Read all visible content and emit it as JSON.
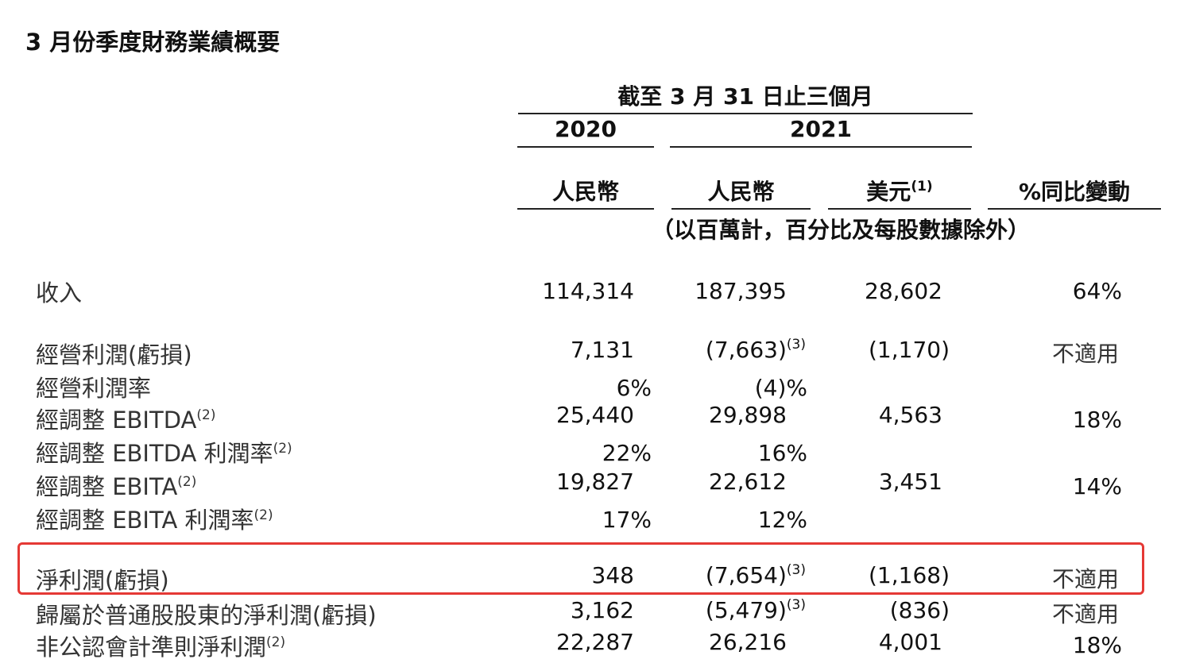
{
  "title": "3 月份季度財務業績概要",
  "header": {
    "period": "截至 3 月 31 日止三個月",
    "year_2020": "2020",
    "year_2021": "2021",
    "col_rmb_2020": "人民幣",
    "col_rmb_2021": "人民幣",
    "col_usd": "美元",
    "col_usd_note": "(1)",
    "col_yoy": "%同比變動",
    "unit_note": "（以百萬計，百分比及每股數據除外）"
  },
  "rows": [
    {
      "label": "收入",
      "label_note": "",
      "v2020": "114,314",
      "v2021": "187,395",
      "v2021_note": "",
      "usd": "28,602",
      "yoy": "64%"
    },
    {
      "label": "經營利潤(虧損)",
      "label_note": "",
      "v2020": "7,131",
      "v2021": "(7,663)",
      "v2021_note": "(3)",
      "usd": "(1,170)",
      "yoy": "不適用"
    },
    {
      "label": "經營利潤率",
      "label_note": "",
      "v2020": "6%",
      "v2021": "(4)%",
      "v2021_note": "",
      "usd": "",
      "yoy": ""
    },
    {
      "label": "經調整 EBITDA",
      "label_note": "(2)",
      "v2020": "25,440",
      "v2021": "29,898",
      "v2021_note": "",
      "usd": "4,563",
      "yoy": "18%"
    },
    {
      "label": "經調整 EBITDA 利潤率",
      "label_note": "(2)",
      "v2020": "22%",
      "v2021": "16%",
      "v2021_note": "",
      "usd": "",
      "yoy": ""
    },
    {
      "label": "經調整 EBITA",
      "label_note": "(2)",
      "v2020": "19,827",
      "v2021": "22,612",
      "v2021_note": "",
      "usd": "3,451",
      "yoy": "14%"
    },
    {
      "label": "經調整 EBITA 利潤率",
      "label_note": "(2)",
      "v2020": "17%",
      "v2021": "12%",
      "v2021_note": "",
      "usd": "",
      "yoy": ""
    },
    {
      "label": "淨利潤(虧損)",
      "label_note": "",
      "v2020": "348",
      "v2021": "(7,654)",
      "v2021_note": "(3)",
      "usd": "(1,168)",
      "yoy": "不適用"
    },
    {
      "label": "歸屬於普通股股東的淨利潤(虧損)",
      "label_note": "",
      "v2020": "3,162",
      "v2021": "(5,479)",
      "v2021_note": "(3)",
      "usd": "(836)",
      "yoy": "不適用"
    },
    {
      "label": "非公認會計準則淨利潤",
      "label_note": "(2)",
      "v2020": "22,287",
      "v2021": "26,216",
      "v2021_note": "",
      "usd": "4,001",
      "yoy": "18%"
    }
  ],
  "highlight_color": "#e53935"
}
